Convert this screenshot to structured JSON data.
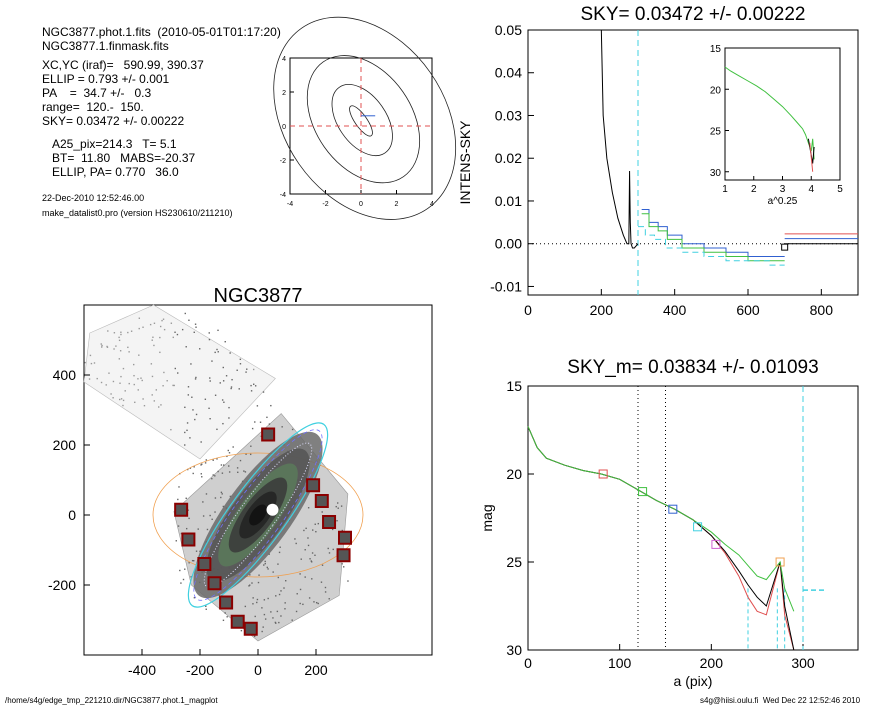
{
  "header": {
    "line1": "NGC3877.phot.1.fits  (2010-05-01T01:17:20)",
    "line2": "NGC3877.1.finmask.fits",
    "params": [
      "XC,YC (iraf)=   590.99, 390.37",
      "ELLIP = 0.793 +/- 0.001",
      "PA    =  34.7 +/-   0.3",
      "range=  120.-  150.",
      "SKY= 0.03472 +/- 0.00222"
    ],
    "results": [
      "A25_pix=214.3   T= 5.1",
      "BT=  11.80   MABS=-20.37",
      "ELLIP, PA= 0.770   36.0"
    ],
    "date": "22-Dec-2010 12:52:46.00",
    "program": "make_datalist0.pro (version HS230610/211210)"
  },
  "footer": {
    "path": "/home/s4g/edge_tmp_221210.dir/NGC3877.phot.1_magplot",
    "host": "s4g@hiisi.oulu.fi  Wed Dec 22 12:52:46 2010"
  },
  "colors": {
    "red": "#e05050",
    "blue": "#3060d0",
    "green": "#40c040",
    "cyan": "#40d0e0",
    "black": "#000000",
    "orange": "#f0a050",
    "magenta": "#d060d0"
  },
  "chart_data": [
    {
      "id": "contour",
      "type": "contour",
      "xlim": [
        -4,
        4
      ],
      "ylim": [
        -4,
        4
      ],
      "xticks": [
        "-4",
        "-2",
        "0",
        "2",
        "4"
      ],
      "yticks": [
        "-4",
        "-2",
        "0",
        "2",
        "4"
      ]
    },
    {
      "id": "sky",
      "type": "line",
      "title": "SKY= 0.03472 +/- 0.00222",
      "xlabel": "",
      "ylabel": "INTENS-SKY",
      "xlim": [
        0,
        900
      ],
      "ylim": [
        -0.012,
        0.05
      ],
      "xticks": [
        "0",
        "200",
        "400",
        "600",
        "800"
      ],
      "yticks": [
        "0.05",
        "0.04",
        "0.03",
        "0.02",
        "0.01",
        "0.00",
        "-0.01"
      ],
      "series": [
        {
          "color": "black",
          "x": [
            200,
            205,
            215,
            230,
            245,
            260,
            270,
            275,
            277,
            279,
            281,
            285,
            290,
            300
          ],
          "y": [
            0.05,
            0.03,
            0.02,
            0.012,
            0.006,
            0.002,
            0.0,
            0.0,
            0.017,
            0.005,
            0.0,
            -0.001,
            -0.001,
            0.0
          ]
        },
        {
          "color": "blue",
          "steps": [
            [
              310,
              330,
              0.008
            ],
            [
              330,
              355,
              0.005
            ],
            [
              355,
              380,
              0.004
            ],
            [
              380,
              420,
              0.002
            ],
            [
              420,
              480,
              0.0
            ],
            [
              480,
              540,
              -0.001
            ],
            [
              540,
              600,
              -0.002
            ],
            [
              600,
              660,
              -0.003
            ],
            [
              660,
              700,
              -0.003
            ]
          ]
        },
        {
          "color": "green",
          "steps": [
            [
              310,
              330,
              0.007
            ],
            [
              330,
              355,
              0.004
            ],
            [
              355,
              380,
              0.003
            ],
            [
              380,
              420,
              0.001
            ],
            [
              420,
              480,
              -0.001
            ],
            [
              480,
              540,
              -0.002
            ],
            [
              540,
              600,
              -0.003
            ],
            [
              600,
              660,
              -0.004
            ],
            [
              660,
              700,
              -0.004
            ]
          ]
        },
        {
          "color": "cyan",
          "dashed": true,
          "steps": [
            [
              300,
              320,
              0.004
            ],
            [
              320,
              345,
              0.002
            ],
            [
              345,
              375,
              0.001
            ],
            [
              375,
              420,
              -0.001
            ],
            [
              420,
              480,
              -0.002
            ],
            [
              480,
              540,
              -0.003
            ],
            [
              540,
              600,
              -0.004
            ],
            [
              600,
              660,
              -0.004
            ],
            [
              660,
              700,
              -0.005
            ]
          ]
        },
        {
          "color": "red",
          "steps": [
            [
              700,
              900,
              0.0023
            ]
          ]
        },
        {
          "color": "blue",
          "steps": [
            [
              700,
              900,
              0.0012
            ]
          ]
        },
        {
          "color": "black",
          "steps": [
            [
              700,
              900,
              0.0
            ]
          ]
        }
      ],
      "marker": {
        "x": 700,
        "y": -0.0008
      },
      "vline_cyan": 300,
      "inset": {
        "xlabel": "a^0.25",
        "xlim": [
          1,
          5
        ],
        "ylim": [
          15,
          31
        ],
        "xticks": [
          "1",
          "2",
          "3",
          "4",
          "5"
        ],
        "yticks": [
          "15",
          "20",
          "25",
          "30"
        ],
        "curve": {
          "x": [
            1.0,
            1.2,
            1.5,
            1.8,
            2.1,
            2.4,
            2.7,
            3.0,
            3.3,
            3.5,
            3.7,
            3.8,
            3.9,
            4.0,
            4.05,
            4.1
          ],
          "y": [
            17.3,
            17.8,
            18.4,
            19.0,
            19.6,
            20.3,
            21.2,
            22.1,
            23.2,
            24.0,
            24.8,
            25.5,
            26.5,
            27.5,
            26.0,
            28.5
          ]
        }
      }
    },
    {
      "id": "image",
      "type": "scatter",
      "title": "NGC3877",
      "xlim": [
        -600,
        600
      ],
      "ylim": [
        -400,
        600
      ],
      "xticks": [
        "-400",
        "-200",
        "0",
        "200"
      ],
      "yticks": [
        "400",
        "200",
        "0",
        "-200"
      ],
      "masked_stars": [
        [
          -265,
          15
        ],
        [
          -240,
          -70
        ],
        [
          -185,
          -140
        ],
        [
          -150,
          -195
        ],
        [
          -110,
          -250
        ],
        [
          -70,
          -305
        ],
        [
          -25,
          -325
        ],
        [
          35,
          230
        ],
        [
          190,
          85
        ],
        [
          220,
          40
        ],
        [
          245,
          -20
        ],
        [
          300,
          -65
        ],
        [
          295,
          -115
        ]
      ]
    },
    {
      "id": "mag",
      "type": "line",
      "title": "SKY_m=  0.03834 +/- 0.01093",
      "xlabel": "a (pix)",
      "ylabel": "mag",
      "xlim": [
        0,
        360
      ],
      "ylim": [
        15,
        30
      ],
      "xticks": [
        "0",
        "100",
        "200",
        "300"
      ],
      "yticks": [
        "15",
        "20",
        "25",
        "30"
      ],
      "vlines_dotted": [
        120,
        150
      ],
      "vline_cyan": 300,
      "series": [
        {
          "color": "red",
          "x": [
            0,
            10,
            20,
            40,
            60,
            80,
            100,
            120,
            140,
            160,
            180,
            200,
            215,
            230,
            240,
            250,
            260,
            275,
            280,
            290
          ],
          "y": [
            17.3,
            18.5,
            19.1,
            19.5,
            19.8,
            20.0,
            20.3,
            20.9,
            21.5,
            22.0,
            22.6,
            23.5,
            24.5,
            25.8,
            27.0,
            27.8,
            28.0,
            25.0,
            28.0,
            30.5
          ]
        },
        {
          "color": "black",
          "x": [
            0,
            10,
            20,
            40,
            60,
            80,
            100,
            120,
            140,
            160,
            180,
            200,
            215,
            230,
            240,
            250,
            260,
            275,
            280,
            290
          ],
          "y": [
            17.3,
            18.5,
            19.1,
            19.5,
            19.8,
            20.0,
            20.3,
            20.9,
            21.5,
            22.0,
            22.6,
            23.5,
            24.4,
            25.5,
            26.3,
            27.0,
            27.5,
            25.0,
            27.5,
            30.5
          ]
        },
        {
          "color": "green",
          "x": [
            0,
            10,
            20,
            40,
            60,
            80,
            100,
            120,
            140,
            160,
            180,
            200,
            215,
            230,
            240,
            250,
            260,
            275,
            280,
            290
          ],
          "y": [
            17.3,
            18.5,
            19.1,
            19.5,
            19.8,
            20.0,
            20.3,
            20.9,
            21.5,
            22.0,
            22.6,
            23.3,
            24.0,
            24.6,
            25.2,
            25.8,
            26.0,
            25.0,
            26.5,
            27.8
          ]
        }
      ],
      "squares": [
        [
          82,
          20.0,
          "red"
        ],
        [
          125,
          21.0,
          "green"
        ],
        [
          158,
          22.0,
          "blue"
        ],
        [
          185,
          23.0,
          "cyan"
        ],
        [
          205,
          24.0,
          "magenta"
        ],
        [
          275,
          25.0,
          "orange"
        ]
      ],
      "cyan_vlines_low": [
        240,
        272,
        280
      ],
      "cyan_dash": {
        "x": [
          300,
          325
        ],
        "y": 26.6
      }
    }
  ]
}
